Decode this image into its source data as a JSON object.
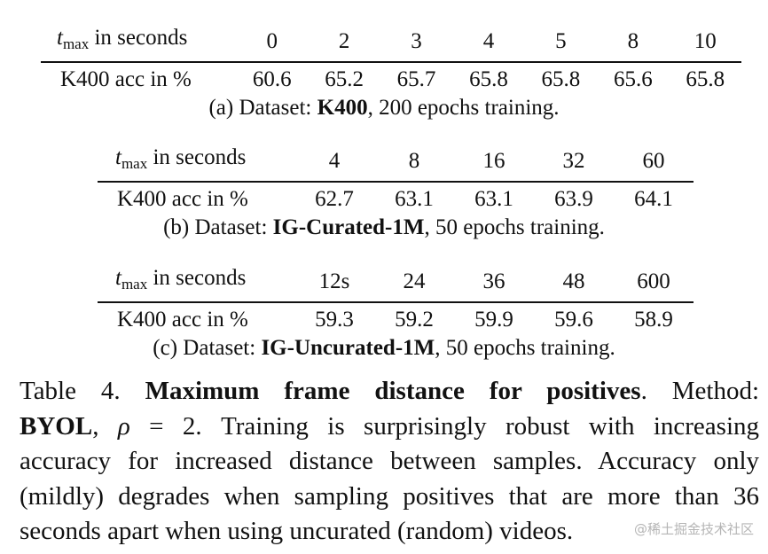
{
  "tables": [
    {
      "header_label_pre": "t",
      "header_label_sub": "max",
      "header_label_post": " in seconds",
      "row_label": "K400 acc in %",
      "columns": [
        "0",
        "2",
        "3",
        "4",
        "5",
        "8",
        "10"
      ],
      "values": [
        "60.6",
        "65.2",
        "65.7",
        "65.8",
        "65.8",
        "65.6",
        "65.8"
      ],
      "caption_prefix": "(a)  Dataset: ",
      "caption_dataset": "K400",
      "caption_suffix": ", 200 epochs training."
    },
    {
      "header_label_pre": "t",
      "header_label_sub": "max",
      "header_label_post": " in seconds",
      "row_label": "K400 acc in %",
      "columns": [
        "4",
        "8",
        "16",
        "32",
        "60"
      ],
      "values": [
        "62.7",
        "63.1",
        "63.1",
        "63.9",
        "64.1"
      ],
      "caption_prefix": "(b)  Dataset: ",
      "caption_dataset": "IG-Curated-1M",
      "caption_suffix": ", 50 epochs training."
    },
    {
      "header_label_pre": "t",
      "header_label_sub": "max",
      "header_label_post": " in seconds",
      "row_label": "K400 acc in %",
      "columns": [
        "12s",
        "24",
        "36",
        "48",
        "600"
      ],
      "values": [
        "59.3",
        "59.2",
        "59.9",
        "59.6",
        "58.9"
      ],
      "caption_prefix": "(c)  Dataset: ",
      "caption_dataset": "IG-Uncurated-1M",
      "caption_suffix": ", 50 epochs training."
    }
  ],
  "paragraph": {
    "table_label": "Table 4. ",
    "title": "Maximum frame distance for positives",
    "after_title": ".  Method:",
    "method": "BYOL",
    "rho": "ρ",
    "rho_eq": " = 2.",
    "line2_rest": "  Training is surprisingly robust with increasing",
    "line3": "accuracy for increased distance between samples. Accuracy only",
    "line4": "(mildly) degrades when sampling positives that are more than  36",
    "line5": "seconds apart when using uncurated (random) videos."
  },
  "watermark": "@稀土掘金技术社区"
}
